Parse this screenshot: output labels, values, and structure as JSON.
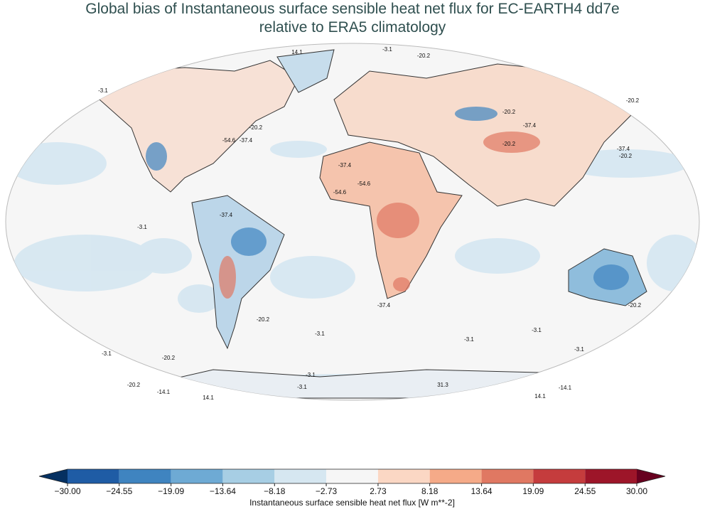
{
  "title_lines": [
    "Global bias of Instantaneous surface sensible heat net flux for EC-EARTH4 dd7e",
    "relative to ERA5 climatology"
  ],
  "contour_labels": [
    "-3.1",
    "-20.2",
    "14.1",
    "-3.1",
    "-20.2",
    "-54.6",
    "-37.4",
    "-20.2",
    "-37.4",
    "-20.2",
    "-37.4",
    "-20.2",
    "-20.2",
    "-37.4",
    "-54.6",
    "-54.6",
    "-3.1",
    "-37.4",
    "-37.4",
    "-20.2",
    "-3.1",
    "-3.1",
    "-3.1",
    "-20.2",
    "-3.1",
    "-20.2",
    "-3.1",
    "-3.1",
    "-3.1",
    "-20.2",
    "-14.1",
    "31.3",
    "-14.1",
    "14.1",
    "14.1"
  ],
  "colorbar": {
    "ticks": [
      {
        "value": -30,
        "label": "−30.00"
      },
      {
        "value": -24.55,
        "label": "−24.55"
      },
      {
        "value": -19.09,
        "label": "−19.09"
      },
      {
        "value": -13.64,
        "label": "−13.64"
      },
      {
        "value": -8.18,
        "label": "−8.18"
      },
      {
        "value": -2.73,
        "label": "−2.73"
      },
      {
        "value": 2.73,
        "label": "2.73"
      },
      {
        "value": 8.18,
        "label": "8.18"
      },
      {
        "value": 13.64,
        "label": "13.64"
      },
      {
        "value": 19.09,
        "label": "19.09"
      },
      {
        "value": 24.55,
        "label": "24.55"
      },
      {
        "value": 30,
        "label": "30.00"
      }
    ],
    "colors": [
      "#1f5ca5",
      "#3f84c0",
      "#6eaad4",
      "#a7cee4",
      "#d6e7f1",
      "#f6f6f6",
      "#fbd7c4",
      "#f5aa88",
      "#e07862",
      "#c53c3d",
      "#9d1529"
    ],
    "extend_colors": [
      "#053061",
      "#67001f"
    ],
    "label": "Instantaneous surface sensible heat net flux [W m**-2]"
  }
}
